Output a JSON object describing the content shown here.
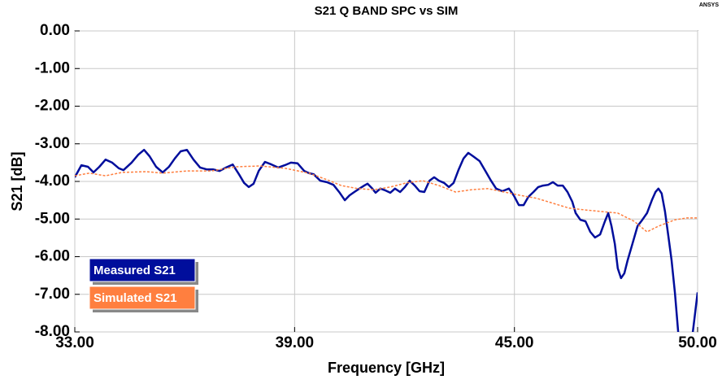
{
  "chart_data": {
    "type": "line",
    "title": "S21 Q BAND SPC vs SIM",
    "brand": "ANSYS",
    "x_label": "Frequency [GHz]",
    "y_label": "S21 [dB]",
    "xlim": [
      33,
      50
    ],
    "ylim": [
      -8,
      0
    ],
    "xticks": [
      {
        "value": 33,
        "label": "33.00"
      },
      {
        "value": 39,
        "label": "39.00"
      },
      {
        "value": 45,
        "label": "45.00"
      },
      {
        "value": 50,
        "label": "50.00"
      }
    ],
    "yticks": [
      {
        "value": 0,
        "label": "0.00"
      },
      {
        "value": -1,
        "label": "-1.00"
      },
      {
        "value": -2,
        "label": "-2.00"
      },
      {
        "value": -3,
        "label": "-3.00"
      },
      {
        "value": -4,
        "label": "-4.00"
      },
      {
        "value": -5,
        "label": "-5.00"
      },
      {
        "value": -6,
        "label": "-6.00"
      },
      {
        "value": -7,
        "label": "-7.00"
      },
      {
        "value": -8,
        "label": "-8.00"
      }
    ],
    "grid": true,
    "legend": "lower left",
    "series": [
      {
        "name": "Measured S21",
        "color": "#000e9c",
        "style": "solid",
        "x": [
          33.0,
          33.18,
          33.36,
          33.51,
          33.67,
          33.84,
          34.02,
          34.2,
          34.33,
          34.55,
          34.73,
          34.89,
          35.04,
          35.22,
          35.4,
          35.57,
          35.73,
          35.89,
          36.06,
          36.24,
          36.42,
          36.6,
          36.77,
          36.95,
          37.13,
          37.31,
          37.48,
          37.62,
          37.75,
          37.88,
          38.02,
          38.19,
          38.37,
          38.55,
          38.73,
          38.9,
          39.08,
          39.26,
          39.39,
          39.52,
          39.7,
          39.88,
          40.06,
          40.23,
          40.37,
          40.5,
          40.63,
          40.77,
          40.9,
          40.99,
          41.12,
          41.21,
          41.34,
          41.48,
          41.61,
          41.74,
          41.88,
          42.01,
          42.14,
          42.28,
          42.41,
          42.54,
          42.68,
          42.81,
          42.94,
          43.08,
          43.21,
          43.34,
          43.48,
          43.61,
          43.74,
          43.87,
          44.05,
          44.23,
          44.36,
          44.5,
          44.67,
          44.85,
          44.98,
          45.12,
          45.25,
          45.38,
          45.52,
          45.65,
          45.78,
          45.92,
          46.05,
          46.18,
          46.32,
          46.45,
          46.58,
          46.67,
          46.8,
          46.94,
          47.07,
          47.2,
          47.34,
          47.47,
          47.56,
          47.65,
          47.74,
          47.82,
          47.91,
          48.0,
          48.09,
          48.22,
          48.36,
          48.49,
          48.62,
          48.76,
          48.85,
          48.93,
          49.02,
          49.11,
          49.2,
          49.29,
          49.38,
          49.47,
          49.64,
          49.82,
          50.0
        ],
        "values": [
          -3.89,
          -3.57,
          -3.61,
          -3.76,
          -3.61,
          -3.42,
          -3.5,
          -3.65,
          -3.7,
          -3.5,
          -3.29,
          -3.16,
          -3.33,
          -3.61,
          -3.76,
          -3.61,
          -3.39,
          -3.2,
          -3.16,
          -3.42,
          -3.63,
          -3.68,
          -3.68,
          -3.72,
          -3.63,
          -3.55,
          -3.81,
          -4.04,
          -4.15,
          -4.06,
          -3.72,
          -3.48,
          -3.55,
          -3.63,
          -3.57,
          -3.5,
          -3.52,
          -3.72,
          -3.78,
          -3.81,
          -3.98,
          -4.02,
          -4.09,
          -4.3,
          -4.5,
          -4.37,
          -4.28,
          -4.19,
          -4.11,
          -4.06,
          -4.19,
          -4.3,
          -4.19,
          -4.24,
          -4.3,
          -4.19,
          -4.28,
          -4.15,
          -3.98,
          -4.11,
          -4.26,
          -4.28,
          -3.98,
          -3.89,
          -3.98,
          -4.04,
          -4.15,
          -4.04,
          -3.68,
          -3.39,
          -3.24,
          -3.33,
          -3.46,
          -3.76,
          -3.98,
          -4.19,
          -4.26,
          -4.19,
          -4.37,
          -4.63,
          -4.63,
          -4.41,
          -4.28,
          -4.15,
          -4.11,
          -4.09,
          -4.02,
          -4.11,
          -4.11,
          -4.28,
          -4.54,
          -4.84,
          -5.02,
          -5.06,
          -5.34,
          -5.49,
          -5.41,
          -5.06,
          -4.84,
          -5.19,
          -5.66,
          -6.31,
          -6.57,
          -6.44,
          -6.1,
          -5.66,
          -5.19,
          -5.02,
          -4.84,
          -4.48,
          -4.28,
          -4.19,
          -4.32,
          -4.8,
          -5.45,
          -6.1,
          -6.96,
          -8.0,
          -8.6,
          -8.4,
          -6.95
        ]
      },
      {
        "name": "Simulated S21",
        "color": "#ff7f3f",
        "style": "dashed",
        "x": [
          33.0,
          33.4,
          33.84,
          34.29,
          34.95,
          35.4,
          36.06,
          36.73,
          37.4,
          38.06,
          38.73,
          39.39,
          39.84,
          40.28,
          40.72,
          41.17,
          41.61,
          42.05,
          42.5,
          42.94,
          43.39,
          43.83,
          44.27,
          44.72,
          45.16,
          45.61,
          46.05,
          46.49,
          46.94,
          47.38,
          47.82,
          48.27,
          48.62,
          48.93,
          49.38,
          49.71,
          50.0
        ],
        "values": [
          -3.85,
          -3.78,
          -3.85,
          -3.76,
          -3.74,
          -3.78,
          -3.72,
          -3.72,
          -3.61,
          -3.59,
          -3.65,
          -3.78,
          -3.94,
          -4.11,
          -4.19,
          -4.22,
          -4.15,
          -4.04,
          -3.98,
          -4.11,
          -4.28,
          -4.22,
          -4.19,
          -4.28,
          -4.37,
          -4.45,
          -4.58,
          -4.71,
          -4.76,
          -4.8,
          -4.84,
          -5.06,
          -5.34,
          -5.19,
          -5.02,
          -4.97,
          -4.97
        ]
      }
    ]
  }
}
